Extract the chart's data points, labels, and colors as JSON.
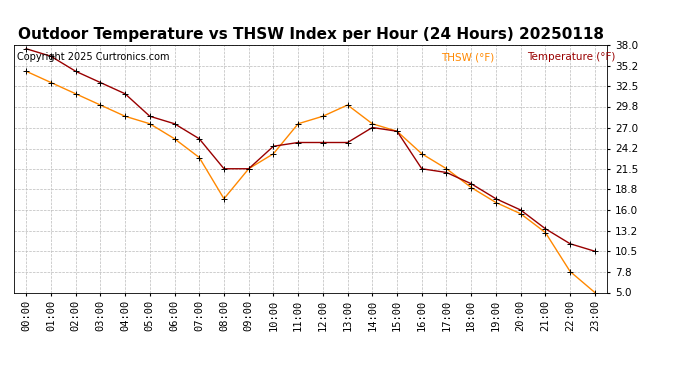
{
  "title": "Outdoor Temperature vs THSW Index per Hour (24 Hours) 20250118",
  "copyright": "Copyright 2025 Curtronics.com",
  "hours": [
    "00:00",
    "01:00",
    "02:00",
    "03:00",
    "04:00",
    "05:00",
    "06:00",
    "07:00",
    "08:00",
    "09:00",
    "10:00",
    "11:00",
    "12:00",
    "13:00",
    "14:00",
    "15:00",
    "16:00",
    "17:00",
    "18:00",
    "19:00",
    "20:00",
    "21:00",
    "22:00",
    "23:00"
  ],
  "temperature": [
    37.5,
    36.5,
    34.5,
    33.0,
    31.5,
    28.5,
    27.5,
    25.5,
    21.5,
    21.5,
    24.5,
    25.0,
    25.0,
    25.0,
    27.0,
    26.5,
    21.5,
    21.0,
    19.5,
    17.5,
    16.0,
    13.5,
    11.5,
    10.5
  ],
  "thsw": [
    34.5,
    33.0,
    31.5,
    30.0,
    28.5,
    27.5,
    25.5,
    23.0,
    17.5,
    21.5,
    23.5,
    27.5,
    28.5,
    30.0,
    27.5,
    26.5,
    23.5,
    21.5,
    19.0,
    17.0,
    15.5,
    13.0,
    7.8,
    5.0
  ],
  "temp_color": "#990000",
  "thsw_color": "#ff8800",
  "ylim_min": 5.0,
  "ylim_max": 38.0,
  "yticks": [
    5.0,
    7.8,
    10.5,
    13.2,
    16.0,
    18.8,
    21.5,
    24.2,
    27.0,
    29.8,
    32.5,
    35.2,
    38.0
  ],
  "background_color": "#ffffff",
  "grid_color": "#bbbbbb",
  "title_fontsize": 11,
  "label_fontsize": 7.5,
  "copyright_fontsize": 7,
  "legend_thsw": "THSW (°F)",
  "legend_temp": "Temperature (°F)",
  "legend_thsw_color": "#ff8800",
  "legend_temp_color": "#990000"
}
